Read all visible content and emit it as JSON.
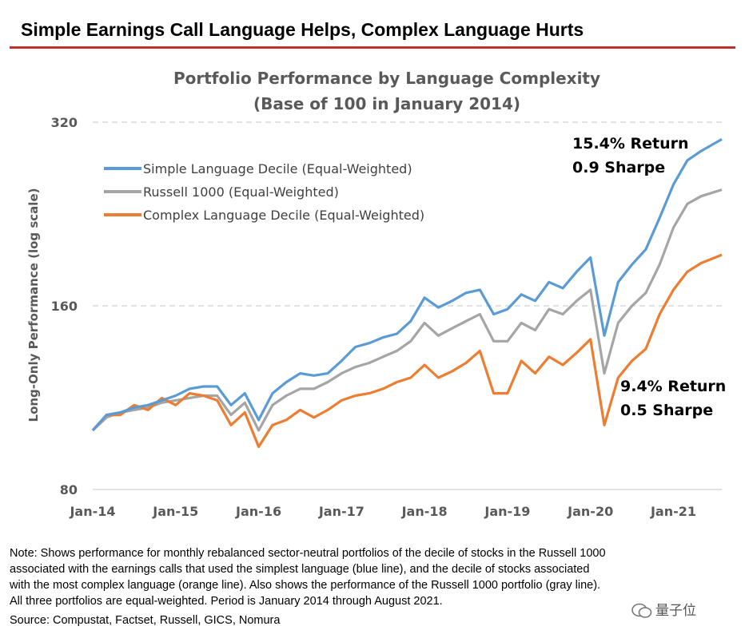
{
  "header": {
    "headline": "Simple Earnings Call Language Helps, Complex Language Hurts"
  },
  "colors": {
    "accent_rule": "#c0302c",
    "simple": "#5b9bd5",
    "russell": "#a5a5a5",
    "complex": "#ed7d31"
  },
  "chart_data": {
    "type": "line",
    "title": "Portfolio Performance by Language Complexity",
    "subtitle": "(Base of 100 in January 2014)",
    "ylabel": "Long-Only Performance (log scale)",
    "yscale": "log",
    "ylim": [
      80,
      320
    ],
    "yticks": [
      "320",
      "160",
      "80"
    ],
    "ytick_values": [
      320,
      160,
      80
    ],
    "xlim": [
      "2014-01",
      "2021-08"
    ],
    "xticks": [
      "Jan-14",
      "Jan-15",
      "Jan-16",
      "Jan-17",
      "Jan-18",
      "Jan-19",
      "Jan-20",
      "Jan-21"
    ],
    "xtick_years": [
      2014,
      2015,
      2016,
      2017,
      2018,
      2019,
      2020,
      2021
    ],
    "grid": "horizontal dashed",
    "legend_position": "top-left",
    "series": [
      {
        "name": "Simple Language Decile (Equal-Weighted)",
        "color": "#5b9bd5",
        "points": [
          [
            "2014-01",
            100
          ],
          [
            "2014-03",
            106
          ],
          [
            "2014-05",
            107
          ],
          [
            "2014-07",
            109
          ],
          [
            "2014-09",
            110
          ],
          [
            "2014-11",
            112
          ],
          [
            "2015-01",
            114
          ],
          [
            "2015-03",
            117
          ],
          [
            "2015-05",
            118
          ],
          [
            "2015-07",
            118
          ],
          [
            "2015-09",
            110
          ],
          [
            "2015-11",
            115
          ],
          [
            "2016-01",
            104
          ],
          [
            "2016-03",
            115
          ],
          [
            "2016-05",
            120
          ],
          [
            "2016-07",
            124
          ],
          [
            "2016-09",
            123
          ],
          [
            "2016-11",
            124
          ],
          [
            "2017-01",
            130
          ],
          [
            "2017-03",
            137
          ],
          [
            "2017-05",
            139
          ],
          [
            "2017-07",
            142
          ],
          [
            "2017-09",
            144
          ],
          [
            "2017-11",
            151
          ],
          [
            "2018-01",
            165
          ],
          [
            "2018-03",
            159
          ],
          [
            "2018-05",
            163
          ],
          [
            "2018-07",
            168
          ],
          [
            "2018-09",
            170
          ],
          [
            "2018-11",
            155
          ],
          [
            "2019-01",
            158
          ],
          [
            "2019-03",
            167
          ],
          [
            "2019-05",
            163
          ],
          [
            "2019-07",
            175
          ],
          [
            "2019-09",
            171
          ],
          [
            "2019-11",
            182
          ],
          [
            "2020-01",
            192
          ],
          [
            "2020-03",
            143
          ],
          [
            "2020-05",
            175
          ],
          [
            "2020-07",
            187
          ],
          [
            "2020-09",
            198
          ],
          [
            "2020-11",
            223
          ],
          [
            "2021-01",
            253
          ],
          [
            "2021-03",
            277
          ],
          [
            "2021-05",
            287
          ],
          [
            "2021-08",
            300
          ]
        ]
      },
      {
        "name": "Russell 1000 (Equal-Weighted)",
        "color": "#a5a5a5",
        "points": [
          [
            "2014-01",
            100
          ],
          [
            "2014-03",
            105
          ],
          [
            "2014-05",
            107
          ],
          [
            "2014-07",
            108
          ],
          [
            "2014-09",
            109
          ],
          [
            "2014-11",
            111
          ],
          [
            "2015-01",
            112
          ],
          [
            "2015-03",
            113
          ],
          [
            "2015-05",
            114
          ],
          [
            "2015-07",
            114
          ],
          [
            "2015-09",
            106
          ],
          [
            "2015-11",
            111
          ],
          [
            "2016-01",
            100
          ],
          [
            "2016-03",
            110
          ],
          [
            "2016-05",
            114
          ],
          [
            "2016-07",
            117
          ],
          [
            "2016-09",
            117
          ],
          [
            "2016-11",
            120
          ],
          [
            "2017-01",
            124
          ],
          [
            "2017-03",
            127
          ],
          [
            "2017-05",
            129
          ],
          [
            "2017-07",
            132
          ],
          [
            "2017-09",
            135
          ],
          [
            "2017-11",
            140
          ],
          [
            "2018-01",
            150
          ],
          [
            "2018-03",
            143
          ],
          [
            "2018-05",
            147
          ],
          [
            "2018-07",
            151
          ],
          [
            "2018-09",
            155
          ],
          [
            "2018-11",
            140
          ],
          [
            "2019-01",
            140
          ],
          [
            "2019-03",
            150
          ],
          [
            "2019-05",
            146
          ],
          [
            "2019-07",
            158
          ],
          [
            "2019-09",
            155
          ],
          [
            "2019-11",
            163
          ],
          [
            "2020-01",
            170
          ],
          [
            "2020-03",
            124
          ],
          [
            "2020-05",
            150
          ],
          [
            "2020-07",
            160
          ],
          [
            "2020-09",
            168
          ],
          [
            "2020-11",
            187
          ],
          [
            "2021-01",
            215
          ],
          [
            "2021-03",
            235
          ],
          [
            "2021-05",
            242
          ],
          [
            "2021-08",
            248
          ]
        ]
      },
      {
        "name": "Complex Language Decile (Equal-Weighted)",
        "color": "#ed7d31",
        "points": [
          [
            "2014-01",
            100
          ],
          [
            "2014-03",
            106
          ],
          [
            "2014-05",
            106
          ],
          [
            "2014-07",
            110
          ],
          [
            "2014-09",
            108
          ],
          [
            "2014-11",
            113
          ],
          [
            "2015-01",
            110
          ],
          [
            "2015-03",
            115
          ],
          [
            "2015-05",
            114
          ],
          [
            "2015-07",
            112
          ],
          [
            "2015-09",
            102
          ],
          [
            "2015-11",
            107
          ],
          [
            "2016-01",
            94
          ],
          [
            "2016-03",
            102
          ],
          [
            "2016-05",
            104
          ],
          [
            "2016-07",
            108
          ],
          [
            "2016-09",
            105
          ],
          [
            "2016-11",
            108
          ],
          [
            "2017-01",
            112
          ],
          [
            "2017-03",
            114
          ],
          [
            "2017-05",
            115
          ],
          [
            "2017-07",
            117
          ],
          [
            "2017-09",
            120
          ],
          [
            "2017-11",
            122
          ],
          [
            "2018-01",
            128
          ],
          [
            "2018-03",
            122
          ],
          [
            "2018-05",
            125
          ],
          [
            "2018-07",
            129
          ],
          [
            "2018-09",
            135
          ],
          [
            "2018-11",
            115
          ],
          [
            "2019-01",
            115
          ],
          [
            "2019-03",
            130
          ],
          [
            "2019-05",
            124
          ],
          [
            "2019-07",
            132
          ],
          [
            "2019-09",
            128
          ],
          [
            "2019-11",
            134
          ],
          [
            "2020-01",
            141
          ],
          [
            "2020-03",
            102
          ],
          [
            "2020-05",
            122
          ],
          [
            "2020-07",
            130
          ],
          [
            "2020-09",
            136
          ],
          [
            "2020-11",
            155
          ],
          [
            "2021-01",
            170
          ],
          [
            "2021-03",
            182
          ],
          [
            "2021-05",
            188
          ],
          [
            "2021-08",
            194
          ]
        ]
      }
    ],
    "annotations": [
      {
        "series": "Simple Language Decile (Equal-Weighted)",
        "lines": [
          "15.4% Return",
          "0.9 Sharpe"
        ]
      },
      {
        "series": "Complex Language Decile (Equal-Weighted)",
        "lines": [
          "9.4% Return",
          "0.5 Sharpe"
        ]
      }
    ]
  },
  "notes": {
    "lines": [
      "Note: Shows performance for monthly rebalanced sector-neutral portfolios of the decile of stocks in the Russell 1000",
      "associated with the earnings calls that used the simplest language (blue line), and the decile of stocks associated",
      "with the most complex language (orange line). Also shows the performance of the Russell 1000 portfolio (gray line).",
      "All three portfolios are equal-weighted. Period is January 2014 through August 2021."
    ],
    "source": "Source: Compustat, Factset, Russell, GICS, Nomura"
  },
  "watermark": {
    "text": "量子位"
  }
}
